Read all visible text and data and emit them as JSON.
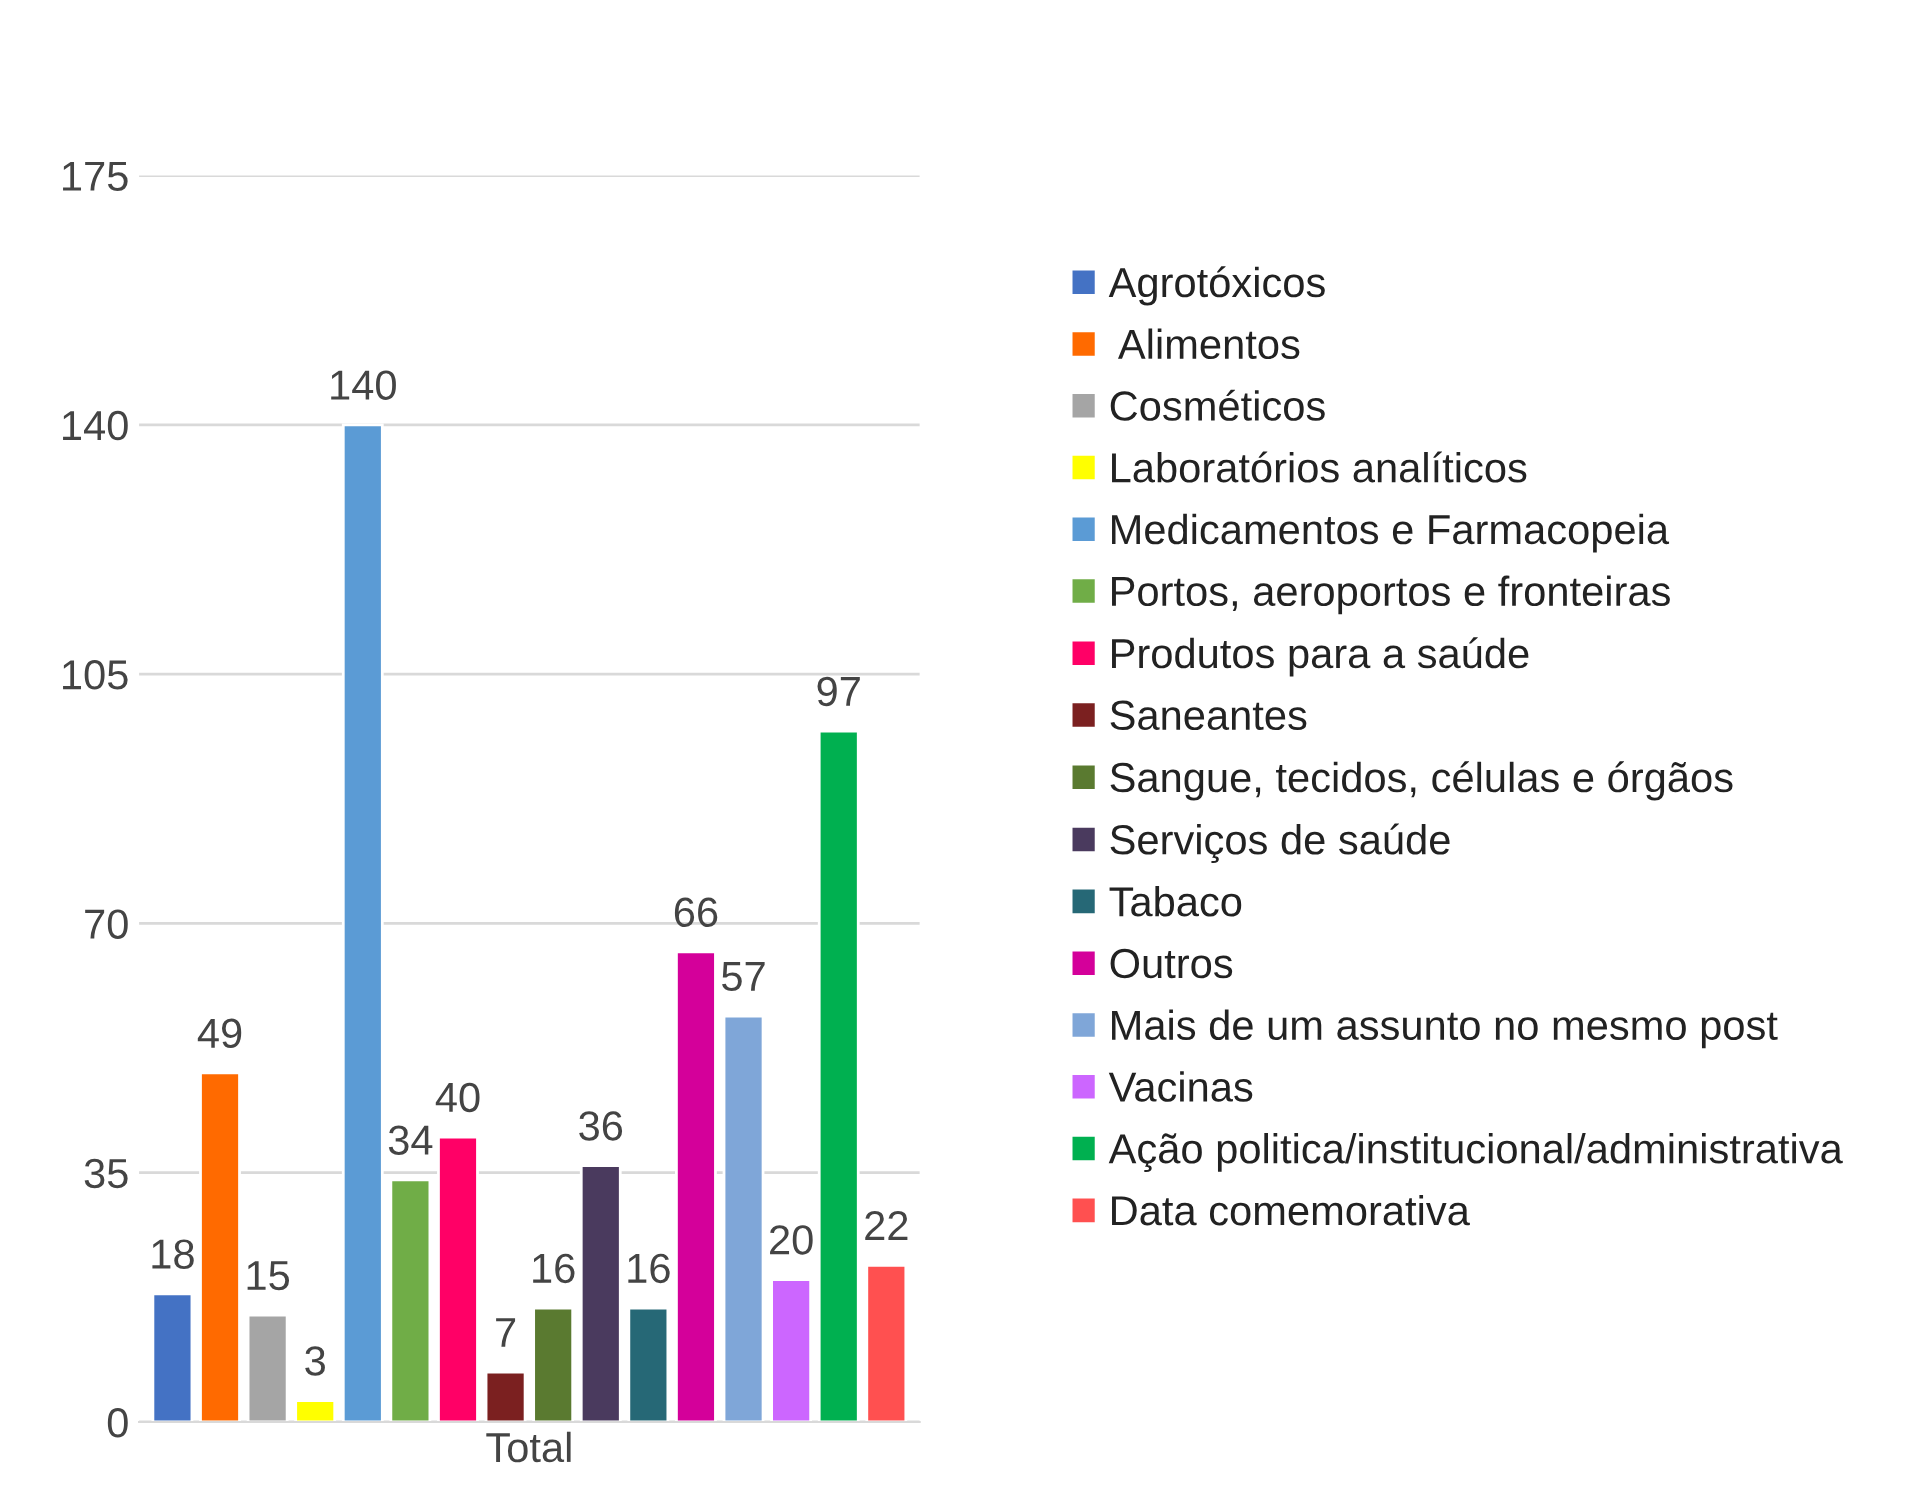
{
  "chart_data": {
    "type": "bar",
    "stacked": true,
    "xlabel": "Total",
    "categories": [
      null,
      null,
      null,
      null,
      null,
      null,
      null,
      null,
      null,
      null,
      null,
      null,
      null,
      null,
      null,
      null
    ],
    "ylim": [
      0,
      175
    ],
    "yticks": [
      0,
      35,
      70,
      105,
      140,
      175
    ],
    "grid": "y",
    "legend": "right",
    "data_labels": true,
    "series": [
      {
        "name": "Agrotóxicos",
        "color": "#4472c4",
        "values": [
          18,
          null,
          null,
          null,
          null,
          null,
          null,
          null,
          null,
          null,
          null,
          null,
          null,
          null,
          null,
          null
        ]
      },
      {
        "name": " Alimentos",
        "color": "#ff6a00",
        "values": [
          null,
          49,
          null,
          null,
          null,
          null,
          null,
          null,
          null,
          null,
          null,
          null,
          null,
          null,
          null,
          null
        ]
      },
      {
        "name": "Cosméticos",
        "color": "#a5a5a5",
        "values": [
          null,
          null,
          15,
          null,
          null,
          null,
          null,
          null,
          null,
          null,
          null,
          null,
          null,
          null,
          null,
          null
        ]
      },
      {
        "name": "Laboratórios analíticos",
        "color": "#ffff00",
        "values": [
          null,
          null,
          null,
          3,
          null,
          null,
          null,
          null,
          null,
          null,
          null,
          null,
          null,
          null,
          null,
          null
        ]
      },
      {
        "name": "Medicamentos e Farmacopeia",
        "color": "#5b9bd5",
        "values": [
          null,
          null,
          null,
          null,
          140,
          null,
          null,
          null,
          null,
          null,
          null,
          null,
          null,
          null,
          null,
          null
        ]
      },
      {
        "name": "Portos, aeroportos e fronteiras",
        "color": "#70ad47",
        "values": [
          null,
          null,
          null,
          null,
          null,
          34,
          null,
          null,
          null,
          null,
          null,
          null,
          null,
          null,
          null,
          null
        ]
      },
      {
        "name": "Produtos para a saúde",
        "color": "#ff0066",
        "values": [
          null,
          null,
          null,
          null,
          null,
          null,
          40,
          null,
          null,
          null,
          null,
          null,
          null,
          null,
          null,
          null
        ]
      },
      {
        "name": "Saneantes",
        "color": "#7b2020",
        "values": [
          null,
          null,
          null,
          null,
          null,
          null,
          null,
          7,
          null,
          null,
          null,
          null,
          null,
          null,
          null,
          null
        ]
      },
      {
        "name": "Sangue, tecidos, células e órgãos",
        "color": "#5a7a30",
        "values": [
          null,
          null,
          null,
          null,
          null,
          null,
          null,
          null,
          16,
          null,
          null,
          null,
          null,
          null,
          null,
          null
        ]
      },
      {
        "name": "Serviços de saúde",
        "color": "#4a3a5e",
        "values": [
          null,
          null,
          null,
          null,
          null,
          null,
          null,
          null,
          null,
          36,
          null,
          null,
          null,
          null,
          null,
          null
        ]
      },
      {
        "name": "Tabaco",
        "color": "#266876",
        "values": [
          null,
          null,
          null,
          null,
          null,
          null,
          null,
          null,
          null,
          null,
          16,
          null,
          null,
          null,
          null,
          null
        ]
      },
      {
        "name": "Outros",
        "color": "#d4009a",
        "values": [
          null,
          null,
          null,
          null,
          null,
          null,
          null,
          null,
          null,
          null,
          null,
          66,
          null,
          null,
          null,
          null
        ]
      },
      {
        "name": "Mais de um assunto no mesmo post",
        "color": "#7fa6d8",
        "values": [
          null,
          null,
          null,
          null,
          null,
          null,
          null,
          null,
          null,
          null,
          null,
          null,
          57,
          null,
          null,
          null
        ]
      },
      {
        "name": "Vacinas",
        "color": "#cc66ff",
        "values": [
          null,
          null,
          null,
          null,
          null,
          null,
          null,
          null,
          null,
          null,
          null,
          null,
          null,
          20,
          null,
          null
        ]
      },
      {
        "name": "Ação politica/institucional/administrativa",
        "color": "#00b050",
        "values": [
          null,
          null,
          null,
          null,
          null,
          null,
          null,
          null,
          null,
          null,
          null,
          null,
          null,
          null,
          97,
          null
        ]
      },
      {
        "name": "Data comemorativa",
        "color": "#ff5050",
        "values": [
          null,
          null,
          null,
          null,
          null,
          null,
          null,
          null,
          null,
          null,
          null,
          null,
          null,
          null,
          null,
          22
        ]
      }
    ]
  }
}
